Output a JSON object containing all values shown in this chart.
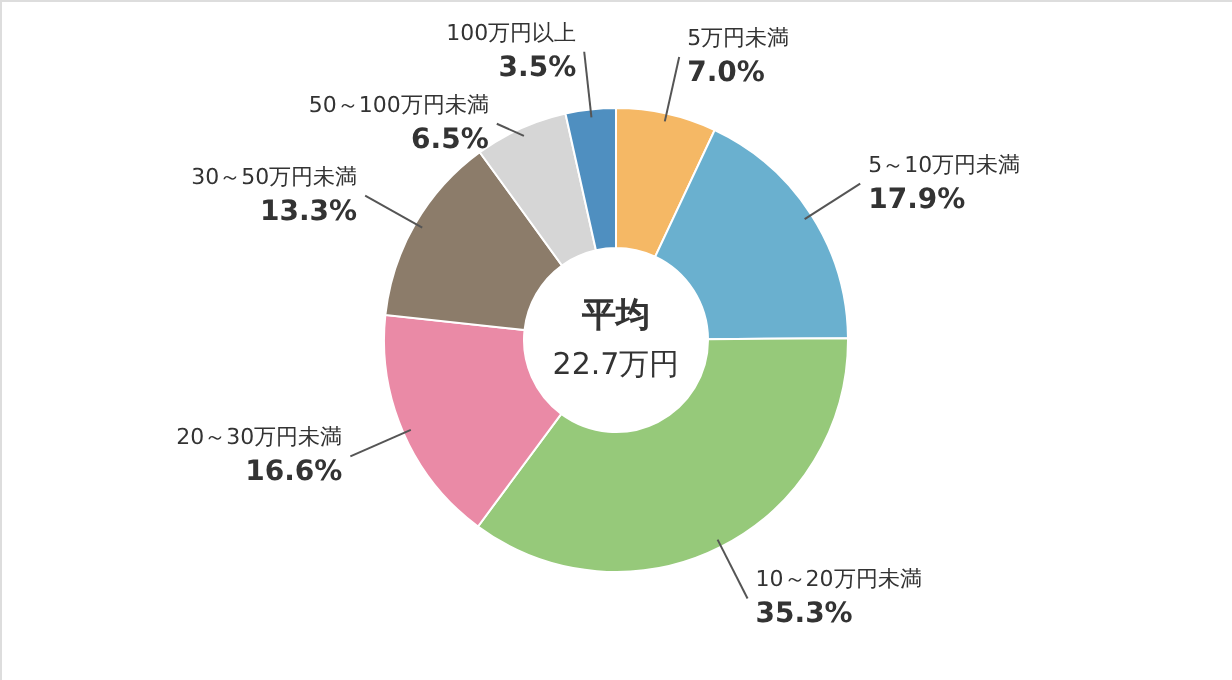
{
  "chart_data": {
    "type": "donut",
    "categories": [
      "5万円未満",
      "5～10万円未満",
      "10～20万円未満",
      "20～30万円未満",
      "30～50万円未満",
      "50～100万円未満",
      "100万円以上"
    ],
    "values": [
      7.0,
      17.9,
      35.3,
      16.6,
      13.3,
      6.5,
      3.5
    ],
    "value_labels": [
      "7.0%",
      "17.9%",
      "35.3%",
      "16.6%",
      "13.3%",
      "6.5%",
      "3.5%"
    ],
    "colors": [
      "#f5b865",
      "#6ab0cf",
      "#96c97a",
      "#ea8aa6",
      "#8c7c6a",
      "#d6d6d6",
      "#4f8fc0"
    ],
    "annotations": [
      "平均",
      "22.7万円"
    ],
    "legend": false
  }
}
